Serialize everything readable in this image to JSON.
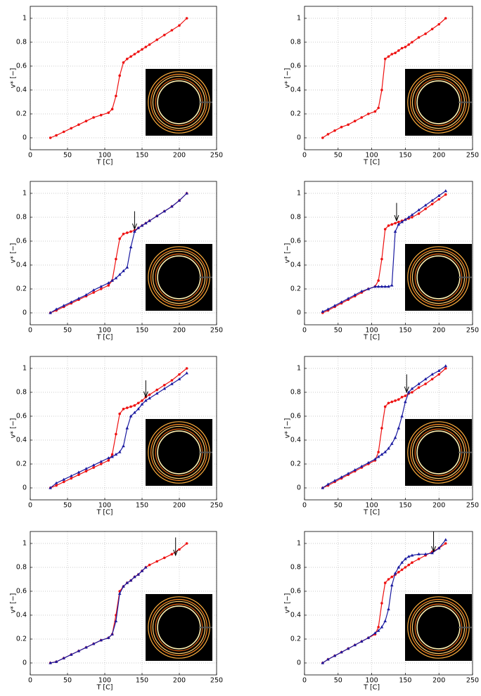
{
  "chart_data": [
    {
      "type": "line",
      "xlabel": "T   [C]",
      "ylabel": "v*  [−]",
      "grid": true,
      "xlim": [
        0,
        250
      ],
      "ylim": [
        -0.1,
        1.1
      ],
      "xticks": [
        0,
        50,
        100,
        150,
        200,
        250
      ],
      "yticks": [
        0,
        0.2,
        0.4,
        0.6,
        0.8,
        1
      ],
      "x": [
        27,
        35,
        45,
        55,
        65,
        75,
        85,
        95,
        105,
        110,
        115,
        120,
        125,
        130,
        135,
        140,
        145,
        150,
        155,
        160,
        170,
        180,
        190,
        200,
        210
      ],
      "series": [
        {
          "color": "#ee1111",
          "values": [
            0,
            0.02,
            0.05,
            0.08,
            0.11,
            0.14,
            0.17,
            0.19,
            0.21,
            0.24,
            0.35,
            0.52,
            0.63,
            0.66,
            0.68,
            0.7,
            0.72,
            0.74,
            0.76,
            0.78,
            0.82,
            0.86,
            0.9,
            0.94,
            1.0
          ]
        }
      ]
    },
    {
      "type": "line",
      "xlabel": "T   [C]",
      "ylabel": "v*  [−]",
      "grid": true,
      "xlim": [
        0,
        250
      ],
      "ylim": [
        -0.1,
        1.1
      ],
      "xticks": [
        0,
        50,
        100,
        150,
        200,
        250
      ],
      "yticks": [
        0,
        0.2,
        0.4,
        0.6,
        0.8,
        1
      ],
      "x": [
        27,
        35,
        45,
        55,
        65,
        75,
        85,
        95,
        105,
        110,
        115,
        120,
        125,
        130,
        135,
        140,
        145,
        150,
        155,
        160,
        170,
        180,
        190,
        200,
        210
      ],
      "series": [
        {
          "color": "#ee1111",
          "values": [
            0,
            0.03,
            0.06,
            0.09,
            0.11,
            0.14,
            0.17,
            0.2,
            0.22,
            0.25,
            0.4,
            0.66,
            0.68,
            0.7,
            0.71,
            0.73,
            0.75,
            0.76,
            0.78,
            0.8,
            0.84,
            0.87,
            0.91,
            0.95,
            1.0
          ]
        }
      ]
    },
    {
      "type": "line",
      "xlabel": "T   [C]",
      "ylabel": "v*  [−]",
      "grid": true,
      "xlim": [
        0,
        250
      ],
      "ylim": [
        -0.1,
        1.1
      ],
      "xticks": [
        0,
        50,
        100,
        150,
        200,
        250
      ],
      "yticks": [
        0,
        0.2,
        0.4,
        0.6,
        0.8,
        1
      ],
      "x": [
        27,
        35,
        45,
        55,
        65,
        75,
        85,
        95,
        105,
        110,
        115,
        120,
        125,
        130,
        135,
        140,
        145,
        150,
        155,
        160,
        170,
        180,
        190,
        200,
        210
      ],
      "series": [
        {
          "color": "#ee1111",
          "values": [
            0,
            0.02,
            0.05,
            0.08,
            0.11,
            0.14,
            0.17,
            0.2,
            0.23,
            0.27,
            0.45,
            0.62,
            0.66,
            0.67,
            0.68,
            0.69,
            0.71,
            0.73,
            0.75,
            0.77,
            0.81,
            0.85,
            0.89,
            0.94,
            1.0
          ]
        },
        {
          "color": "#1a1aa0",
          "values": [
            0,
            0.03,
            0.06,
            0.09,
            0.12,
            0.15,
            0.19,
            0.22,
            0.25,
            0.27,
            0.29,
            0.32,
            0.35,
            0.38,
            0.55,
            0.68,
            0.71,
            0.73,
            0.75,
            0.77,
            0.81,
            0.85,
            0.89,
            0.94,
            1.0
          ]
        }
      ],
      "arrow": {
        "x": 140,
        "from": 0.85,
        "to": 0.7
      }
    },
    {
      "type": "line",
      "xlabel": "T   [C]",
      "ylabel": "v*  [−]",
      "grid": true,
      "xlim": [
        0,
        250
      ],
      "ylim": [
        -0.1,
        1.1
      ],
      "xticks": [
        0,
        50,
        100,
        150,
        200,
        250
      ],
      "yticks": [
        0,
        0.2,
        0.4,
        0.6,
        0.8,
        1
      ],
      "x": [
        27,
        35,
        45,
        55,
        65,
        75,
        85,
        95,
        105,
        110,
        115,
        120,
        125,
        130,
        135,
        140,
        145,
        150,
        155,
        160,
        170,
        180,
        190,
        200,
        210
      ],
      "series": [
        {
          "color": "#ee1111",
          "values": [
            0,
            0.02,
            0.05,
            0.08,
            0.11,
            0.14,
            0.17,
            0.2,
            0.22,
            0.27,
            0.45,
            0.7,
            0.73,
            0.74,
            0.75,
            0.76,
            0.77,
            0.78,
            0.79,
            0.8,
            0.83,
            0.87,
            0.91,
            0.95,
            0.99
          ]
        },
        {
          "color": "#1a1aa0",
          "values": [
            0.01,
            0.03,
            0.06,
            0.09,
            0.12,
            0.15,
            0.18,
            0.2,
            0.22,
            0.22,
            0.22,
            0.22,
            0.22,
            0.23,
            0.68,
            0.74,
            0.76,
            0.78,
            0.8,
            0.82,
            0.86,
            0.9,
            0.94,
            0.98,
            1.02
          ]
        }
      ],
      "arrow": {
        "x": 137,
        "from": 0.92,
        "to": 0.77
      }
    },
    {
      "type": "line",
      "xlabel": "T   [C]",
      "ylabel": "v*  [−]",
      "grid": true,
      "xlim": [
        0,
        250
      ],
      "ylim": [
        -0.1,
        1.1
      ],
      "xticks": [
        0,
        50,
        100,
        150,
        200,
        250
      ],
      "yticks": [
        0,
        0.2,
        0.4,
        0.6,
        0.8,
        1
      ],
      "x": [
        27,
        35,
        45,
        55,
        65,
        75,
        85,
        95,
        105,
        110,
        115,
        120,
        125,
        130,
        135,
        140,
        145,
        150,
        155,
        160,
        170,
        180,
        190,
        200,
        210
      ],
      "series": [
        {
          "color": "#ee1111",
          "values": [
            0,
            0.02,
            0.05,
            0.08,
            0.11,
            0.14,
            0.17,
            0.2,
            0.23,
            0.28,
            0.45,
            0.62,
            0.66,
            0.67,
            0.68,
            0.69,
            0.71,
            0.73,
            0.76,
            0.78,
            0.82,
            0.86,
            0.9,
            0.95,
            1.0
          ]
        },
        {
          "color": "#1a1aa0",
          "values": [
            0,
            0.04,
            0.07,
            0.1,
            0.13,
            0.16,
            0.19,
            0.22,
            0.25,
            0.26,
            0.28,
            0.3,
            0.35,
            0.5,
            0.6,
            0.63,
            0.66,
            0.7,
            0.73,
            0.75,
            0.79,
            0.83,
            0.87,
            0.91,
            0.96
          ]
        }
      ],
      "arrow": {
        "x": 155,
        "from": 0.9,
        "to": 0.76
      }
    },
    {
      "type": "line",
      "xlabel": "T   [C]",
      "ylabel": "v*  [−]",
      "grid": true,
      "xlim": [
        0,
        250
      ],
      "ylim": [
        -0.1,
        1.1
      ],
      "xticks": [
        0,
        50,
        100,
        150,
        200,
        250
      ],
      "yticks": [
        0,
        0.2,
        0.4,
        0.6,
        0.8,
        1
      ],
      "x": [
        27,
        35,
        45,
        55,
        65,
        75,
        85,
        95,
        105,
        110,
        115,
        120,
        125,
        130,
        135,
        140,
        145,
        150,
        155,
        160,
        170,
        180,
        190,
        200,
        210
      ],
      "series": [
        {
          "color": "#ee1111",
          "values": [
            0,
            0.02,
            0.05,
            0.08,
            0.11,
            0.14,
            0.17,
            0.2,
            0.23,
            0.3,
            0.5,
            0.68,
            0.71,
            0.72,
            0.73,
            0.74,
            0.76,
            0.77,
            0.79,
            0.8,
            0.84,
            0.87,
            0.91,
            0.95,
            1.0
          ]
        },
        {
          "color": "#1a1aa0",
          "values": [
            0,
            0.03,
            0.06,
            0.09,
            0.12,
            0.15,
            0.18,
            0.21,
            0.24,
            0.26,
            0.28,
            0.3,
            0.33,
            0.37,
            0.42,
            0.5,
            0.6,
            0.72,
            0.8,
            0.83,
            0.87,
            0.91,
            0.95,
            0.98,
            1.02
          ]
        }
      ],
      "arrow": {
        "x": 152,
        "from": 0.95,
        "to": 0.8
      }
    },
    {
      "type": "line",
      "xlabel": "T   [C]",
      "ylabel": "v*  [−]",
      "grid": true,
      "xlim": [
        0,
        250
      ],
      "ylim": [
        -0.1,
        1.1
      ],
      "xticks": [
        0,
        50,
        100,
        150,
        200,
        250
      ],
      "yticks": [
        0,
        0.2,
        0.4,
        0.6,
        0.8,
        1
      ],
      "x": [
        27,
        35,
        45,
        55,
        65,
        75,
        85,
        95,
        105,
        110,
        115,
        120,
        125,
        130,
        135,
        140,
        145,
        150,
        155,
        160,
        170,
        180,
        190,
        200,
        210
      ],
      "series": [
        {
          "color": "#ee1111",
          "values": [
            0,
            0.01,
            0.04,
            0.07,
            0.1,
            0.13,
            0.16,
            0.19,
            0.21,
            0.24,
            0.4,
            0.6,
            0.64,
            0.67,
            0.69,
            0.72,
            0.74,
            0.77,
            0.8,
            0.82,
            0.85,
            0.88,
            0.91,
            0.95,
            1.0
          ]
        },
        {
          "color": "#1a1aa0",
          "values": [
            0,
            0.01,
            0.04,
            0.07,
            0.1,
            0.13,
            0.16,
            0.19,
            0.21,
            0.24,
            0.35,
            0.58,
            0.64,
            0.67,
            0.69,
            0.72,
            0.74,
            0.77,
            0.8,
            null,
            null,
            null,
            null,
            null,
            null
          ]
        }
      ],
      "arrow": {
        "x": 195,
        "from": 1.05,
        "to": 0.9
      }
    },
    {
      "type": "line",
      "xlabel": "T   [C]",
      "ylabel": "v*  [−]",
      "grid": true,
      "xlim": [
        0,
        250
      ],
      "ylim": [
        -0.1,
        1.1
      ],
      "xticks": [
        0,
        50,
        100,
        150,
        200,
        250
      ],
      "yticks": [
        0,
        0.2,
        0.4,
        0.6,
        0.8,
        1
      ],
      "x": [
        27,
        35,
        45,
        55,
        65,
        75,
        85,
        95,
        105,
        110,
        115,
        120,
        125,
        130,
        135,
        140,
        145,
        150,
        155,
        160,
        170,
        180,
        190,
        200,
        210
      ],
      "series": [
        {
          "color": "#ee1111",
          "values": [
            0,
            0.03,
            0.06,
            0.09,
            0.12,
            0.15,
            0.18,
            0.21,
            0.24,
            0.3,
            0.5,
            0.67,
            0.7,
            0.72,
            0.74,
            0.76,
            0.78,
            0.8,
            0.82,
            0.84,
            0.87,
            0.9,
            0.93,
            0.96,
            1.0
          ]
        },
        {
          "color": "#1a1aa0",
          "values": [
            0,
            0.03,
            0.06,
            0.09,
            0.12,
            0.15,
            0.18,
            0.21,
            0.25,
            0.27,
            0.3,
            0.35,
            0.45,
            0.65,
            0.75,
            0.8,
            0.84,
            0.87,
            0.89,
            0.9,
            0.91,
            0.91,
            0.92,
            0.96,
            1.03
          ]
        }
      ],
      "arrow": {
        "x": 192,
        "from": 1.1,
        "to": 0.93
      }
    }
  ]
}
